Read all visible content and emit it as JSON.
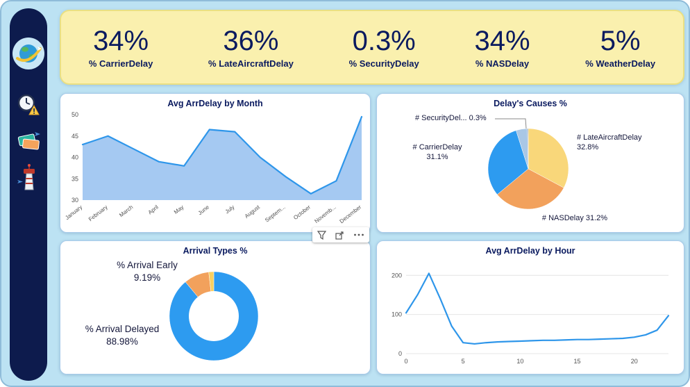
{
  "theme": {
    "canvas_bg": "#BCE2F3",
    "sidebar_bg": "#0D1B4D",
    "kpi_bg": "#FAF0AE",
    "card_border": "#A9CBEA",
    "title_color": "#0A1A5F",
    "accent_blue": "#2E96EA"
  },
  "sidebar": {
    "icons": [
      {
        "name": "airline-logo"
      },
      {
        "name": "delay-clock"
      },
      {
        "name": "flight-tickets"
      },
      {
        "name": "airport-tower"
      }
    ]
  },
  "kpis": [
    {
      "value": "34%",
      "label": "% CarrierDelay"
    },
    {
      "value": "36%",
      "label": "% LateAircraftDelay"
    },
    {
      "value": "0.3%",
      "label": "% SecurityDelay"
    },
    {
      "value": "34%",
      "label": "% NASDelay"
    },
    {
      "value": "5%",
      "label": "% WeatherDelay"
    }
  ],
  "chart_data": [
    {
      "id": "avg-arrdelay-by-month",
      "type": "area",
      "title": "Avg ArrDelay by Month",
      "categories": [
        "January",
        "February",
        "March",
        "April",
        "May",
        "June",
        "July",
        "August",
        "Septem...",
        "October",
        "Novemb...",
        "December"
      ],
      "values": [
        43,
        45,
        42,
        39,
        38,
        46.5,
        46,
        40,
        35.5,
        31.5,
        34.5,
        49.5
      ],
      "ylim": [
        30,
        50
      ],
      "yticks": [
        30,
        35,
        40,
        45,
        50
      ],
      "grid": false,
      "line_color": "#2E96EA",
      "fill_color": "#A5C9F2"
    },
    {
      "id": "delay-causes-pct",
      "type": "pie",
      "title": "Delay's Causes %",
      "slices": [
        {
          "name": "LateAircraftDelay",
          "value": 32.8,
          "color": "#F9D77A",
          "label": "# LateAircraftDelay\n32.8%"
        },
        {
          "name": "NASDelay",
          "value": 31.2,
          "color": "#F2A15C",
          "label": "# NASDelay 31.2%"
        },
        {
          "name": "CarrierDelay",
          "value": 31.1,
          "color": "#2D9BF0",
          "label": "# CarrierDelay\n31.1%"
        },
        {
          "name": "WeatherDelay",
          "value": 4.6,
          "color": "#A9C7E6",
          "label": ""
        },
        {
          "name": "SecurityDelay",
          "value": 0.3,
          "color": "#6F7D8C",
          "label": "# SecurityDel... 0.3%"
        }
      ]
    },
    {
      "id": "arrival-types-pct",
      "type": "donut",
      "title": "Arrival Types %",
      "slices": [
        {
          "name": "Arrival Delayed",
          "value": 88.98,
          "color": "#2D9BF0",
          "label": "% Arrival Delayed\n88.98%"
        },
        {
          "name": "Arrival Early",
          "value": 9.19,
          "color": "#F2A15C",
          "label": "% Arrival Early\n9.19%"
        },
        {
          "name": "Other",
          "value": 1.83,
          "color": "#F9D060",
          "label": ""
        }
      ]
    },
    {
      "id": "avg-arrdelay-by-hour",
      "type": "line",
      "title": "Avg ArrDelay by Hour",
      "x": [
        0,
        1,
        2,
        3,
        4,
        5,
        6,
        7,
        8,
        9,
        10,
        11,
        12,
        13,
        14,
        15,
        16,
        17,
        18,
        19,
        20,
        21,
        22,
        23
      ],
      "values": [
        104,
        150,
        205,
        140,
        70,
        28,
        25,
        28,
        30,
        31,
        32,
        33,
        34,
        34,
        35,
        36,
        36,
        37,
        38,
        39,
        42,
        48,
        60,
        97
      ],
      "ylim": [
        0,
        220
      ],
      "yticks": [
        0,
        100,
        200
      ],
      "xticks": [
        0,
        5,
        10,
        15,
        20
      ],
      "grid": true,
      "line_color": "#2E96EA"
    }
  ]
}
